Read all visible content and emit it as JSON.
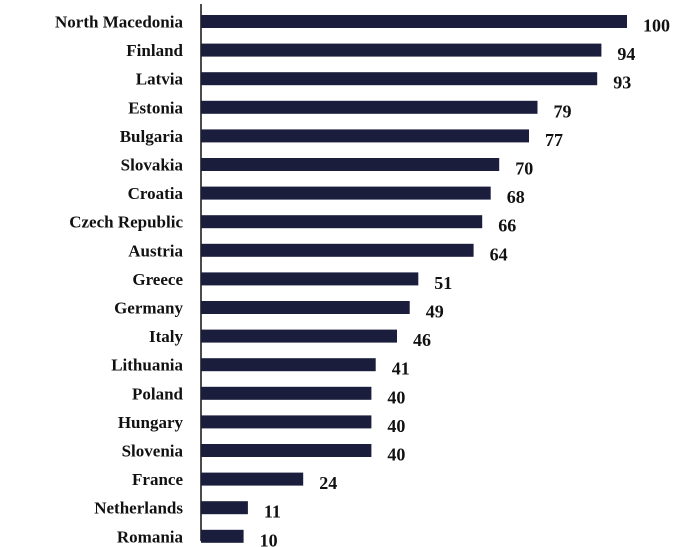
{
  "chart_data": {
    "type": "bar",
    "orientation": "horizontal",
    "categories": [
      "North Macedonia",
      "Finland",
      "Latvia",
      "Estonia",
      "Bulgaria",
      "Slovakia",
      "Croatia",
      "Czech Republic",
      "Austria",
      "Greece",
      "Germany",
      "Italy",
      "Lithuania",
      "Poland",
      "Hungary",
      "Slovenia",
      "France",
      "Netherlands",
      "Romania"
    ],
    "values": [
      100,
      94,
      93,
      79,
      77,
      70,
      68,
      66,
      64,
      51,
      49,
      46,
      41,
      40,
      40,
      40,
      24,
      11,
      10
    ],
    "value_labels": [
      "100",
      "94",
      "93",
      "79",
      "77",
      "70",
      "68",
      "66",
      "64",
      "51",
      "49",
      "46",
      "41",
      "40",
      "40",
      "40",
      "24",
      "11",
      "10"
    ],
    "title": "",
    "xlabel": "",
    "ylabel": "",
    "xlim": [
      0,
      100
    ],
    "grid": false,
    "legend": "none",
    "bar_color": "#1b1d3c"
  }
}
